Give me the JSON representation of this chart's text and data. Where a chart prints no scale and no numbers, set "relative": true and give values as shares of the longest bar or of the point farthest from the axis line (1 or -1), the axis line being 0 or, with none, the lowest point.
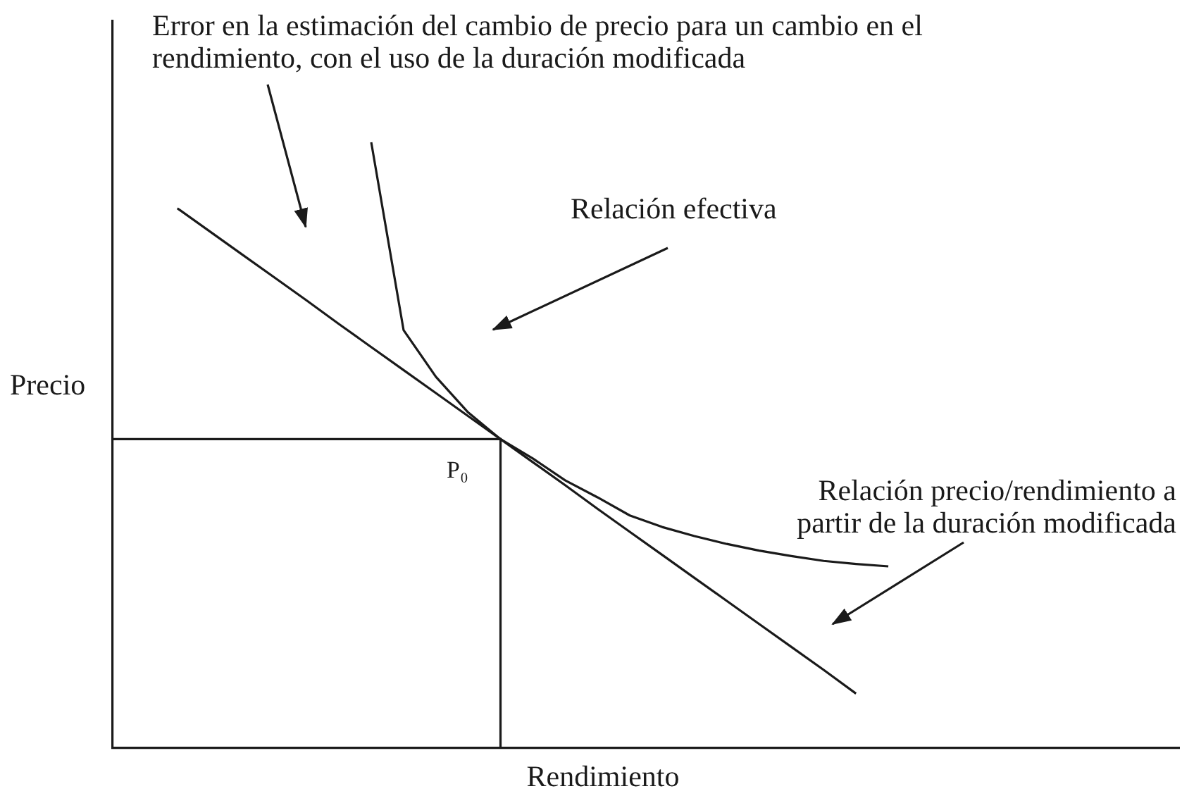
{
  "chart_data": {
    "type": "line",
    "relative": true,
    "xlabel": "Rendimiento",
    "ylabel": "Precio",
    "grid": false,
    "legend": false,
    "marker": "none",
    "line_style": "solid",
    "categories": [
      null,
      null,
      null,
      null,
      null,
      null,
      null,
      null,
      null,
      null,
      null,
      null,
      null,
      null,
      null,
      null,
      null,
      null,
      null,
      null,
      null,
      null,
      null,
      null,
      null,
      null,
      null,
      null,
      null,
      null,
      null,
      null,
      null,
      null
    ],
    "series": [
      {
        "type": "line",
        "color": "#1a1a1a",
        "values": [
          null,
          null,
          null,
          null,
          null,
          null,
          null,
          null,
          1.0,
          0.69,
          0.613,
          0.554,
          0.51,
          0.478,
          0.442,
          0.414,
          0.384,
          0.365,
          0.35,
          0.337,
          0.326,
          0.317,
          0.309,
          0.304,
          0.3,
          null,
          null,
          null,
          null,
          null,
          null,
          null,
          null,
          null
        ]
      },
      {
        "type": "line",
        "color": "#1a1a1a",
        "values": [
          null,
          null,
          0.891,
          0.853,
          0.815,
          0.777,
          0.739,
          0.7,
          0.662,
          0.624,
          0.586,
          0.548,
          0.51,
          0.472,
          0.434,
          0.395,
          0.357,
          0.319,
          0.281,
          0.243,
          0.205,
          0.167,
          0.129,
          0.09,
          null,
          null,
          null,
          null,
          null,
          null,
          null,
          null,
          null,
          null
        ]
      }
    ],
    "ref_lines": [
      {
        "axis": "y",
        "value": 0.51,
        "color": "#1a1a1a"
      }
    ],
    "annotations": [
      "Error en la estimación del cambio de precio para un cambio en el rendimiento, con el uso de la duración modificada",
      "Relación efectiva",
      {
        "text": "P₀",
        "y": 0.51
      },
      "Relación precio/rendimiento a partir de la duración modificada"
    ]
  }
}
